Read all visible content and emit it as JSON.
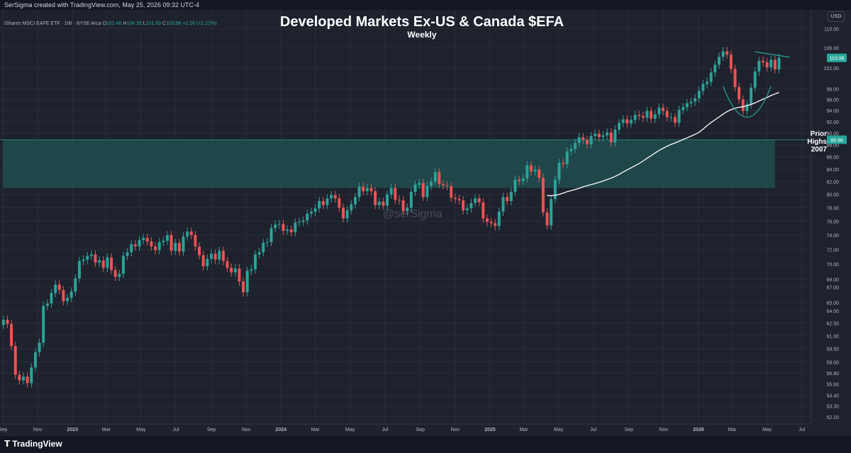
{
  "header": {
    "created_text": "SerSigma created with TradingView.com, May 25, 2026 09:32 UTC-4"
  },
  "legend": {
    "symbol": "iShares MSCI EAFE ETF · 1W · NYSE Arca",
    "ohlc": [
      {
        "label": "O",
        "value": "102.46"
      },
      {
        "label": "H",
        "value": "104.35"
      },
      {
        "label": "L",
        "value": "101.69"
      },
      {
        "label": "C",
        "value": "103.98"
      }
    ],
    "change": "+2.26 (+2.22%)"
  },
  "currency_button": "USD",
  "watermark": "@serSigma",
  "zone_label": {
    "line1": "Prior",
    "line2": "Highs",
    "line3": "2007"
  },
  "footer": {
    "brand": "TradingView"
  },
  "colors": {
    "background": "#1e222d",
    "up": "#26a69a",
    "down": "#ef5350",
    "moving_average": "#ffffff",
    "zone_fill": "#1f5f5b",
    "grid": "#2a2e39"
  },
  "chart_data": {
    "type": "candlestick",
    "title": "Developed Markets Ex-US & Canada $EFA",
    "subtitle": "Weekly",
    "ylim": [
      51.5,
      114
    ],
    "y_scale": "log",
    "grid": true,
    "y_ticks": [
      "110.00",
      "106.00",
      "102.00",
      "98.00",
      "96.00",
      "94.00",
      "92.00",
      "90.00",
      "88.00",
      "86.00",
      "84.00",
      "82.00",
      "80.00",
      "78.00",
      "76.00",
      "74.00",
      "72.00",
      "70.00",
      "68.00",
      "67.00",
      "65.00",
      "64.00",
      "62.50",
      "61.00",
      "59.50",
      "58.00",
      "56.80",
      "55.60",
      "54.40",
      "53.30",
      "52.20"
    ],
    "x_ticks": [
      "Sep",
      "Nov",
      "2023",
      "Mar",
      "May",
      "Jul",
      "Sep",
      "Nov",
      "2024",
      "Mar",
      "May",
      "Jul",
      "Sep",
      "Nov",
      "2025",
      "Mar",
      "May",
      "Jul",
      "Sep",
      "Nov",
      "2026",
      "Mar",
      "May",
      "Jul"
    ],
    "x_range": [
      "2022-09-01",
      "2026-07-15"
    ],
    "price_labels": [
      {
        "value": 103.98,
        "text": "103.98",
        "color": "#26a69a"
      },
      {
        "value": 88.86,
        "text": "88.86",
        "color": "#26a69a"
      }
    ],
    "zone": {
      "low": 81.0,
      "high": 88.86,
      "x_start": "2022-09-01",
      "x_end": "2026-05-15"
    },
    "close_series": [
      [
        "2022-09-02",
        62.9
      ],
      [
        "2022-09-09",
        62.4
      ],
      [
        "2022-09-16",
        59.8
      ],
      [
        "2022-09-23",
        56.6
      ],
      [
        "2022-09-30",
        56.0
      ],
      [
        "2022-10-07",
        56.4
      ],
      [
        "2022-10-14",
        55.7
      ],
      [
        "2022-10-21",
        57.4
      ],
      [
        "2022-10-28",
        59.1
      ],
      [
        "2022-11-04",
        60.2
      ],
      [
        "2022-11-11",
        64.6
      ],
      [
        "2022-11-18",
        64.9
      ],
      [
        "2022-11-25",
        66.2
      ],
      [
        "2022-12-02",
        67.3
      ],
      [
        "2022-12-09",
        66.6
      ],
      [
        "2022-12-16",
        65.2
      ],
      [
        "2022-12-23",
        65.6
      ],
      [
        "2022-12-30",
        66.4
      ],
      [
        "2023-01-06",
        68.1
      ],
      [
        "2023-01-13",
        70.4
      ],
      [
        "2023-01-20",
        70.6
      ],
      [
        "2023-01-27",
        71.1
      ],
      [
        "2023-02-03",
        71.3
      ],
      [
        "2023-02-10",
        70.2
      ],
      [
        "2023-02-17",
        70.5
      ],
      [
        "2023-02-24",
        69.5
      ],
      [
        "2023-03-03",
        70.9
      ],
      [
        "2023-03-10",
        69.2
      ],
      [
        "2023-03-17",
        68.3
      ],
      [
        "2023-03-24",
        68.7
      ],
      [
        "2023-03-31",
        71.1
      ],
      [
        "2023-04-07",
        71.6
      ],
      [
        "2023-04-14",
        72.7
      ],
      [
        "2023-04-21",
        72.4
      ],
      [
        "2023-04-28",
        73.3
      ],
      [
        "2023-05-05",
        73.6
      ],
      [
        "2023-05-12",
        73.1
      ],
      [
        "2023-05-19",
        72.4
      ],
      [
        "2023-05-26",
        71.9
      ],
      [
        "2023-06-02",
        73.0
      ],
      [
        "2023-06-09",
        73.2
      ],
      [
        "2023-06-16",
        74.0
      ],
      [
        "2023-06-23",
        71.8
      ],
      [
        "2023-06-30",
        72.9
      ],
      [
        "2023-07-07",
        71.7
      ],
      [
        "2023-07-14",
        73.8
      ],
      [
        "2023-07-21",
        74.5
      ],
      [
        "2023-07-28",
        74.0
      ],
      [
        "2023-08-04",
        72.4
      ],
      [
        "2023-08-11",
        71.2
      ],
      [
        "2023-08-18",
        69.7
      ],
      [
        "2023-08-25",
        70.7
      ],
      [
        "2023-09-01",
        71.4
      ],
      [
        "2023-09-08",
        70.6
      ],
      [
        "2023-09-15",
        71.8
      ],
      [
        "2023-09-22",
        70.4
      ],
      [
        "2023-09-29",
        69.5
      ],
      [
        "2023-10-06",
        68.9
      ],
      [
        "2023-10-13",
        69.4
      ],
      [
        "2023-10-20",
        67.7
      ],
      [
        "2023-10-27",
        66.3
      ],
      [
        "2023-11-03",
        69.1
      ],
      [
        "2023-11-10",
        69.3
      ],
      [
        "2023-11-17",
        71.3
      ],
      [
        "2023-11-24",
        71.6
      ],
      [
        "2023-12-01",
        72.9
      ],
      [
        "2023-12-08",
        73.0
      ],
      [
        "2023-12-15",
        75.0
      ],
      [
        "2023-12-22",
        75.5
      ],
      [
        "2023-12-29",
        75.6
      ],
      [
        "2024-01-05",
        74.6
      ],
      [
        "2024-01-12",
        74.8
      ],
      [
        "2024-01-19",
        74.4
      ],
      [
        "2024-01-26",
        75.8
      ],
      [
        "2024-02-02",
        75.9
      ],
      [
        "2024-02-09",
        76.1
      ],
      [
        "2024-02-16",
        77.1
      ],
      [
        "2024-02-23",
        77.4
      ],
      [
        "2024-03-01",
        77.9
      ],
      [
        "2024-03-08",
        79.0
      ],
      [
        "2024-03-15",
        78.4
      ],
      [
        "2024-03-22",
        79.4
      ],
      [
        "2024-03-29",
        79.9
      ],
      [
        "2024-04-05",
        79.4
      ],
      [
        "2024-04-12",
        78.0
      ],
      [
        "2024-04-19",
        76.4
      ],
      [
        "2024-04-26",
        77.6
      ],
      [
        "2024-05-03",
        78.5
      ],
      [
        "2024-05-10",
        79.6
      ],
      [
        "2024-05-17",
        81.2
      ],
      [
        "2024-05-24",
        80.5
      ],
      [
        "2024-05-31",
        81.0
      ],
      [
        "2024-06-07",
        80.5
      ],
      [
        "2024-06-14",
        78.4
      ],
      [
        "2024-06-21",
        78.9
      ],
      [
        "2024-06-28",
        78.3
      ],
      [
        "2024-07-05",
        80.0
      ],
      [
        "2024-07-12",
        81.0
      ],
      [
        "2024-07-19",
        79.2
      ],
      [
        "2024-07-26",
        79.1
      ],
      [
        "2024-08-02",
        77.5
      ],
      [
        "2024-08-09",
        78.0
      ],
      [
        "2024-08-16",
        80.4
      ],
      [
        "2024-08-23",
        81.5
      ],
      [
        "2024-08-30",
        81.8
      ],
      [
        "2024-09-06",
        79.6
      ],
      [
        "2024-09-13",
        81.3
      ],
      [
        "2024-09-20",
        82.0
      ],
      [
        "2024-09-27",
        83.5
      ],
      [
        "2024-10-04",
        81.6
      ],
      [
        "2024-10-11",
        81.4
      ],
      [
        "2024-10-18",
        81.3
      ],
      [
        "2024-10-25",
        79.5
      ],
      [
        "2024-11-01",
        79.3
      ],
      [
        "2024-11-08",
        79.1
      ],
      [
        "2024-11-15",
        77.6
      ],
      [
        "2024-11-22",
        77.9
      ],
      [
        "2024-11-29",
        78.7
      ],
      [
        "2024-12-06",
        79.4
      ],
      [
        "2024-12-13",
        78.8
      ],
      [
        "2024-12-20",
        76.4
      ],
      [
        "2024-12-27",
        75.9
      ],
      [
        "2025-01-03",
        75.7
      ],
      [
        "2025-01-10",
        75.3
      ],
      [
        "2025-01-17",
        77.4
      ],
      [
        "2025-01-24",
        79.6
      ],
      [
        "2025-01-31",
        79.0
      ],
      [
        "2025-02-07",
        80.4
      ],
      [
        "2025-02-14",
        82.3
      ],
      [
        "2025-02-21",
        82.1
      ],
      [
        "2025-02-28",
        82.5
      ],
      [
        "2025-03-07",
        84.6
      ],
      [
        "2025-03-14",
        83.6
      ],
      [
        "2025-03-21",
        83.9
      ],
      [
        "2025-03-28",
        82.6
      ],
      [
        "2025-04-04",
        77.3
      ],
      [
        "2025-04-11",
        75.4
      ],
      [
        "2025-04-18",
        79.3
      ],
      [
        "2025-04-25",
        82.3
      ],
      [
        "2025-05-02",
        85.0
      ],
      [
        "2025-05-09",
        84.8
      ],
      [
        "2025-05-16",
        86.9
      ],
      [
        "2025-05-23",
        87.3
      ],
      [
        "2025-05-30",
        88.3
      ],
      [
        "2025-06-06",
        89.3
      ],
      [
        "2025-06-13",
        88.8
      ],
      [
        "2025-06-20",
        88.1
      ],
      [
        "2025-06-27",
        89.5
      ],
      [
        "2025-07-04",
        89.9
      ],
      [
        "2025-07-11",
        89.3
      ],
      [
        "2025-07-18",
        89.6
      ],
      [
        "2025-07-25",
        90.1
      ],
      [
        "2025-08-01",
        88.4
      ],
      [
        "2025-08-08",
        90.6
      ],
      [
        "2025-08-15",
        91.8
      ],
      [
        "2025-08-22",
        92.4
      ],
      [
        "2025-08-29",
        91.7
      ],
      [
        "2025-09-05",
        92.3
      ],
      [
        "2025-09-12",
        93.2
      ],
      [
        "2025-09-19",
        93.0
      ],
      [
        "2025-09-26",
        92.7
      ],
      [
        "2025-10-03",
        93.9
      ],
      [
        "2025-10-10",
        92.5
      ],
      [
        "2025-10-17",
        93.3
      ],
      [
        "2025-10-24",
        94.5
      ],
      [
        "2025-10-31",
        93.9
      ],
      [
        "2025-11-07",
        92.8
      ],
      [
        "2025-11-14",
        92.8
      ],
      [
        "2025-11-21",
        91.8
      ],
      [
        "2025-11-28",
        94.1
      ],
      [
        "2025-12-05",
        94.6
      ],
      [
        "2025-12-12",
        95.3
      ],
      [
        "2025-12-19",
        95.6
      ],
      [
        "2025-12-26",
        96.2
      ],
      [
        "2026-01-02",
        97.6
      ],
      [
        "2026-01-09",
        98.9
      ],
      [
        "2026-01-16",
        99.3
      ],
      [
        "2026-01-23",
        101.1
      ],
      [
        "2026-01-30",
        102.6
      ],
      [
        "2026-02-06",
        104.2
      ],
      [
        "2026-02-13",
        105.3
      ],
      [
        "2026-02-20",
        104.6
      ],
      [
        "2026-02-27",
        101.8
      ],
      [
        "2026-03-06",
        98.3
      ],
      [
        "2026-03-13",
        96.0
      ],
      [
        "2026-03-20",
        93.9
      ],
      [
        "2026-03-27",
        95.1
      ],
      [
        "2026-04-03",
        98.2
      ],
      [
        "2026-04-10",
        101.3
      ],
      [
        "2026-04-17",
        103.4
      ],
      [
        "2026-04-24",
        103.1
      ],
      [
        "2026-05-01",
        102.1
      ],
      [
        "2026-05-08",
        103.6
      ],
      [
        "2026-05-15",
        101.7
      ],
      [
        "2026-05-22",
        103.98
      ]
    ]
  }
}
